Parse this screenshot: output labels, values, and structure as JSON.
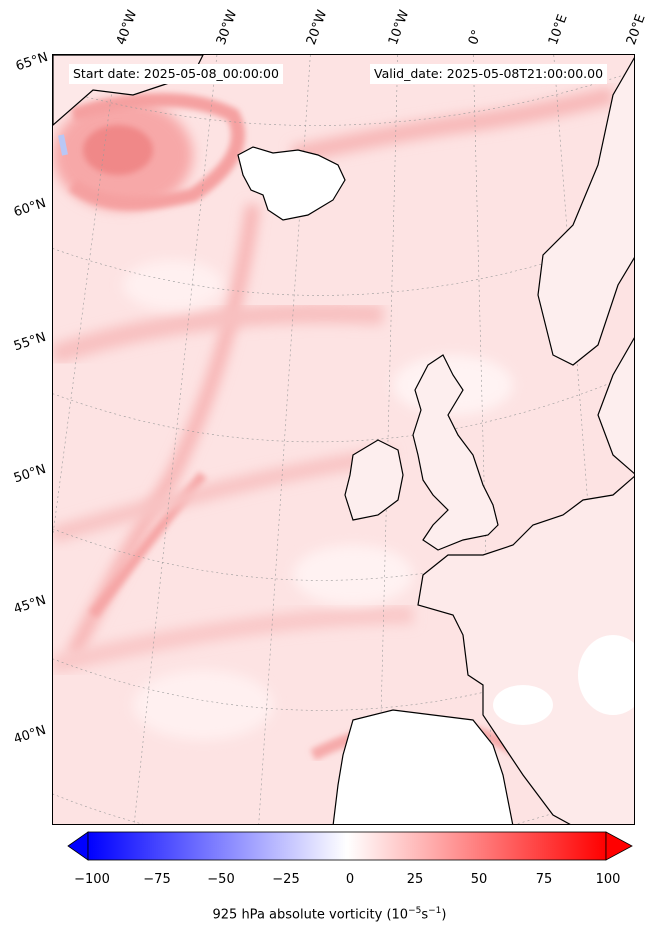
{
  "header": {
    "start_date": "Start date: 2025-05-08_00:00:00",
    "valid_date": "Valid_date: 2025-05-08T21:00:00.00"
  },
  "graticule": {
    "longitude_labels": [
      "40°W",
      "30°W",
      "20°W",
      "10°W",
      "0°",
      "10°E",
      "20°E"
    ],
    "latitude_labels": [
      "65°N",
      "60°N",
      "55°N",
      "50°N",
      "45°N",
      "40°N"
    ]
  },
  "colorbar": {
    "ticks": [
      "−100",
      "−75",
      "−50",
      "−25",
      "0",
      "25",
      "50",
      "75",
      "100"
    ],
    "min": -100,
    "max": 100,
    "label_prefix": "925 hPa absolute vorticity (10",
    "label_exp1": "−5",
    "label_mid": "s",
    "label_exp2": "−1",
    "label_suffix": ")",
    "colormap": "bwr",
    "colors": {
      "negative": "#0000ff",
      "zero": "#ffffff",
      "positive": "#ff0000"
    }
  },
  "map": {
    "field": "925 hPa absolute vorticity",
    "background_tint": "#fde2e2",
    "coastline_color": "#000000"
  }
}
